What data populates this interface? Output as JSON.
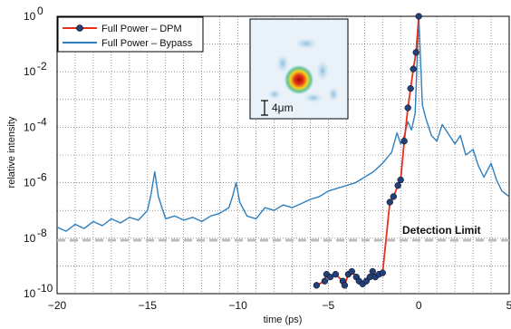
{
  "chart_data": {
    "type": "line",
    "xlabel": "time (ps)",
    "ylabel": "relative intensity",
    "xlim": [
      -20,
      5
    ],
    "ylim_exponent": [
      -10,
      0
    ],
    "yscale": "log",
    "grid": true,
    "legend_placement": "top-left",
    "x_ticks": [
      "−20",
      "−15",
      "−10",
      "−5",
      "0",
      "5"
    ],
    "y_ticks": [
      {
        "base": "10",
        "exp": "0"
      },
      {
        "base": "10",
        "exp": "-2"
      },
      {
        "base": "10",
        "exp": "-4"
      },
      {
        "base": "10",
        "exp": "-6"
      },
      {
        "base": "10",
        "exp": "-8"
      },
      {
        "base": "10",
        "exp": "-10"
      }
    ],
    "detection_limit": {
      "label": "Detection Limit",
      "log10_y": -8.07,
      "color": "#bbbbbb"
    },
    "inset": {
      "scale_label": "4μm"
    },
    "series": [
      {
        "name": "Full Power – DPM",
        "color": "#e8301c",
        "marker_color": "#23407a",
        "x": [
          -5.65,
          -5.2,
          -5.1,
          -4.9,
          -4.6,
          -4.2,
          -4.1,
          -3.9,
          -3.7,
          -3.45,
          -3.3,
          -3.1,
          -2.9,
          -2.7,
          -2.55,
          -2.4,
          -2.2,
          -2.0,
          -1.6,
          -1.4,
          -1.15,
          -1.0,
          -0.8,
          -0.6,
          -0.45,
          -0.3,
          -0.15,
          0.0
        ],
        "log10_y": [
          -9.7,
          -9.55,
          -9.3,
          -9.4,
          -9.3,
          -9.55,
          -9.7,
          -9.3,
          -9.2,
          -9.4,
          -9.55,
          -9.65,
          -9.55,
          -9.4,
          -9.2,
          -9.4,
          -9.3,
          -9.25,
          -6.7,
          -6.5,
          -6.1,
          -5.9,
          -4.5,
          -3.3,
          -2.6,
          -1.9,
          -1.3,
          0.0
        ]
      },
      {
        "name": "Full Power – Bypass",
        "color": "#2e7fbe",
        "x": [
          -20,
          -19.5,
          -19,
          -18.5,
          -18,
          -17.5,
          -17,
          -16.5,
          -16,
          -15.5,
          -15,
          -14.8,
          -14.6,
          -14.4,
          -14,
          -13.5,
          -13,
          -12.5,
          -12,
          -11.5,
          -11,
          -10.5,
          -10.3,
          -10.1,
          -9.9,
          -9.5,
          -9,
          -8.5,
          -8,
          -7.5,
          -7,
          -6.5,
          -6,
          -5.5,
          -5,
          -4.5,
          -4,
          -3.5,
          -3,
          -2.5,
          -2,
          -1.5,
          -1.2,
          -1,
          -0.8,
          -0.6,
          -0.4,
          -0.2,
          0,
          0.2,
          0.4,
          0.7,
          1,
          1.3,
          1.6,
          2,
          2.3,
          2.6,
          3,
          3.3,
          3.6,
          4,
          4.3,
          4.6,
          5
        ],
        "log10_y": [
          -7.6,
          -7.75,
          -7.5,
          -7.65,
          -7.4,
          -7.55,
          -7.3,
          -7.45,
          -7.25,
          -7.35,
          -7.0,
          -6.4,
          -5.6,
          -6.5,
          -7.3,
          -7.2,
          -7.35,
          -7.25,
          -7.4,
          -7.2,
          -7.1,
          -6.9,
          -6.5,
          -6.0,
          -6.7,
          -7.2,
          -7.3,
          -6.9,
          -7.0,
          -6.8,
          -6.9,
          -6.75,
          -6.6,
          -6.5,
          -6.3,
          -6.2,
          -6.1,
          -6.0,
          -5.8,
          -5.6,
          -5.3,
          -4.9,
          -4.2,
          -4.6,
          -4.3,
          -3.8,
          -4.1,
          -3.5,
          0.0,
          -3.2,
          -3.7,
          -4.3,
          -4.5,
          -3.9,
          -4.2,
          -4.6,
          -4.3,
          -5.0,
          -4.8,
          -5.4,
          -5.8,
          -5.3,
          -5.9,
          -6.3,
          -6.5
        ]
      }
    ]
  }
}
